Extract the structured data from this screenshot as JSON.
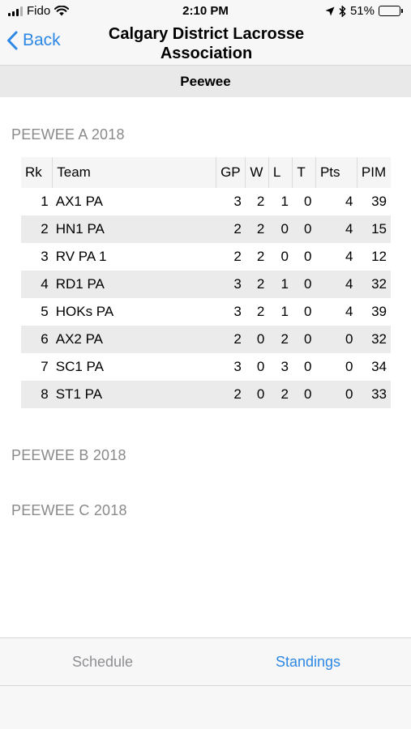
{
  "status_bar": {
    "carrier": "Fido",
    "time": "2:10 PM",
    "battery_percent": "51%",
    "battery_level": 0.51,
    "icons": [
      "signal-icon",
      "wifi-icon",
      "location-icon",
      "bluetooth-icon",
      "battery-icon"
    ]
  },
  "nav": {
    "back_label": "Back",
    "title_line1": "Calgary District Lacrosse",
    "title_line2": "Association",
    "accent_color": "#2e88e6"
  },
  "section": {
    "title": "Peewee"
  },
  "groups": [
    {
      "title": "PEEWEE A 2018"
    },
    {
      "title": "PEEWEE B 2018"
    },
    {
      "title": "PEEWEE C 2018"
    }
  ],
  "standings": {
    "headers": {
      "rk": "Rk",
      "team": "Team",
      "gp": "GP",
      "w": "W",
      "l": "L",
      "t": "T",
      "pts": "Pts",
      "pim": "PIM"
    },
    "rows": [
      {
        "rk": "1",
        "team": "AX1 PA",
        "gp": "3",
        "w": "2",
        "l": "1",
        "t": "0",
        "pts": "4",
        "pim": "39"
      },
      {
        "rk": "2",
        "team": "HN1 PA",
        "gp": "2",
        "w": "2",
        "l": "0",
        "t": "0",
        "pts": "4",
        "pim": "15"
      },
      {
        "rk": "3",
        "team": "RV PA 1",
        "gp": "2",
        "w": "2",
        "l": "0",
        "t": "0",
        "pts": "4",
        "pim": "12"
      },
      {
        "rk": "4",
        "team": "RD1  PA",
        "gp": "3",
        "w": "2",
        "l": "1",
        "t": "0",
        "pts": "4",
        "pim": "32"
      },
      {
        "rk": "5",
        "team": "HOKs PA",
        "gp": "3",
        "w": "2",
        "l": "1",
        "t": "0",
        "pts": "4",
        "pim": "39"
      },
      {
        "rk": "6",
        "team": "AX2 PA",
        "gp": "2",
        "w": "0",
        "l": "2",
        "t": "0",
        "pts": "0",
        "pim": "32"
      },
      {
        "rk": "7",
        "team": "SC1 PA",
        "gp": "3",
        "w": "0",
        "l": "3",
        "t": "0",
        "pts": "0",
        "pim": "34"
      },
      {
        "rk": "8",
        "team": "ST1 PA",
        "gp": "2",
        "w": "0",
        "l": "2",
        "t": "0",
        "pts": "0",
        "pim": "33"
      }
    ]
  },
  "tabs": [
    {
      "label": "Schedule",
      "active": false
    },
    {
      "label": "Standings",
      "active": true
    }
  ]
}
